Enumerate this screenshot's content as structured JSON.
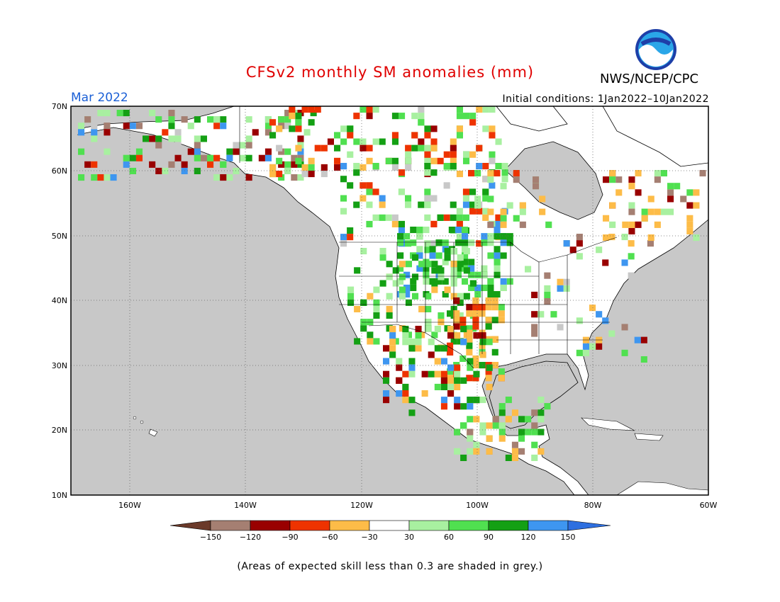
{
  "header": {
    "title": "CFSv2 monthly SM anomalies (mm)",
    "agency": "NWS/NCEP/CPC",
    "month": "Mar 2022",
    "initial_conditions": "Initial conditions: 1Jan2022–10Jan2022"
  },
  "axes": {
    "lat_labels": [
      "70N",
      "60N",
      "50N",
      "40N",
      "30N",
      "20N",
      "10N"
    ],
    "lon_labels": [
      "160W",
      "140W",
      "120W",
      "100W",
      "80W",
      "60W"
    ]
  },
  "legend": {
    "labels": [
      "−150",
      "−120",
      "−90",
      "−60",
      "−30",
      "30",
      "60",
      "90",
      "120",
      "150"
    ],
    "colors": [
      "#6b3a2a",
      "#a57f72",
      "#990000",
      "#ee3300",
      "#fdbc48",
      "#ffffff",
      "#a8f0a0",
      "#50e050",
      "#14a014",
      "#3e96f0",
      "#2e6fe0"
    ]
  },
  "footnote": "(Areas of expected skill less than 0.3 are shaded in grey.)",
  "colors": {
    "grey_low_skill": "#c8c8c8",
    "title_red": "#e00000",
    "month_blue": "#1a5fd6"
  }
}
